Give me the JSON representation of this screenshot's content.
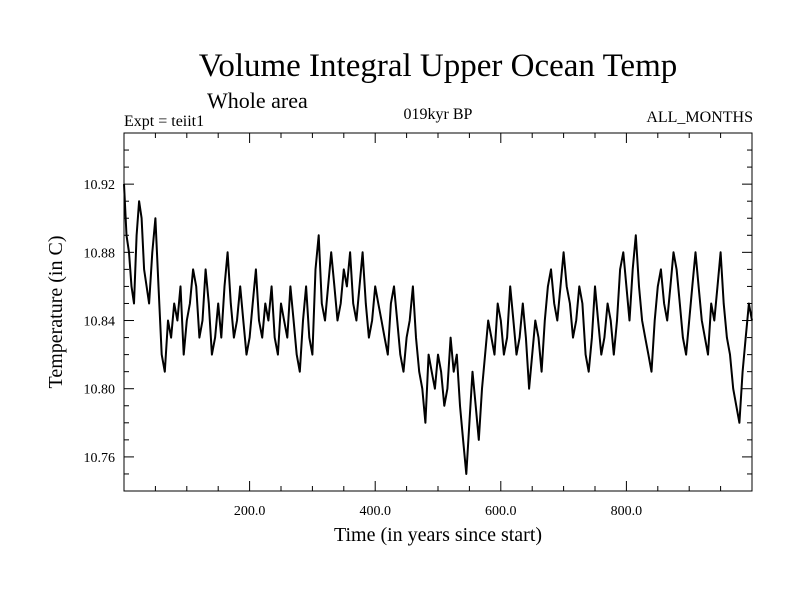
{
  "header": {
    "title": "Volume Integral Upper Ocean Temp",
    "subtitle": "Whole area",
    "left_label": "Expt = teiit1",
    "center_label": "019kyr BP",
    "right_label": "ALL_MONTHS"
  },
  "chart_data": {
    "type": "line",
    "title": "Volume Integral Upper Ocean Temp",
    "subtitle": "Whole area",
    "xlabel": "Time (in years since start)",
    "ylabel": "Temperature (in C)",
    "xlim": [
      0,
      1000
    ],
    "ylim": [
      10.74,
      10.95
    ],
    "xticks": [
      {
        "value": 200,
        "label": "200.0"
      },
      {
        "value": 400,
        "label": "400.0"
      },
      {
        "value": 600,
        "label": "600.0"
      },
      {
        "value": 800,
        "label": "800.0"
      }
    ],
    "yticks": [
      {
        "value": 10.76,
        "label": "10.76"
      },
      {
        "value": 10.8,
        "label": "10.80"
      },
      {
        "value": 10.84,
        "label": "10.84"
      },
      {
        "value": 10.88,
        "label": "10.88"
      },
      {
        "value": 10.92,
        "label": "10.92"
      }
    ],
    "grid": false,
    "line_color": "#000000",
    "series": [
      {
        "x": [
          0,
          4,
          8,
          12,
          16,
          20,
          24,
          28,
          32,
          36,
          40,
          45,
          50,
          55,
          60,
          65,
          70,
          75,
          80,
          85,
          90,
          95,
          100,
          105,
          110,
          115,
          120,
          125,
          130,
          135,
          140,
          145,
          150,
          155,
          160,
          165,
          170,
          175,
          180,
          185,
          190,
          195,
          200,
          205,
          210,
          215,
          220,
          225,
          230,
          235,
          240,
          245,
          250,
          255,
          260,
          265,
          270,
          275,
          280,
          285,
          290,
          295,
          300,
          305,
          310,
          315,
          320,
          325,
          330,
          335,
          340,
          345,
          350,
          355,
          360,
          365,
          370,
          375,
          380,
          385,
          390,
          395,
          400,
          405,
          410,
          415,
          420,
          425,
          430,
          435,
          440,
          445,
          450,
          455,
          460,
          465,
          470,
          475,
          480,
          485,
          490,
          495,
          500,
          505,
          510,
          515,
          520,
          525,
          530,
          535,
          540,
          545,
          550,
          555,
          560,
          565,
          570,
          575,
          580,
          585,
          590,
          595,
          600,
          605,
          610,
          615,
          620,
          625,
          630,
          635,
          640,
          645,
          650,
          655,
          660,
          665,
          670,
          675,
          680,
          685,
          690,
          695,
          700,
          705,
          710,
          715,
          720,
          725,
          730,
          735,
          740,
          745,
          750,
          755,
          760,
          765,
          770,
          775,
          780,
          785,
          790,
          795,
          800,
          805,
          810,
          815,
          820,
          825,
          830,
          835,
          840,
          845,
          850,
          855,
          860,
          865,
          870,
          875,
          880,
          885,
          890,
          895,
          900,
          905,
          910,
          915,
          920,
          925,
          930,
          935,
          940,
          945,
          950,
          955,
          960,
          965,
          970,
          975,
          980,
          985,
          990,
          995,
          1000
        ],
        "y": [
          10.92,
          10.89,
          10.88,
          10.86,
          10.85,
          10.89,
          10.91,
          10.9,
          10.87,
          10.86,
          10.85,
          10.88,
          10.9,
          10.86,
          10.82,
          10.81,
          10.84,
          10.83,
          10.85,
          10.84,
          10.86,
          10.82,
          10.84,
          10.85,
          10.87,
          10.86,
          10.83,
          10.84,
          10.87,
          10.85,
          10.82,
          10.83,
          10.85,
          10.83,
          10.86,
          10.88,
          10.85,
          10.83,
          10.84,
          10.86,
          10.84,
          10.82,
          10.83,
          10.85,
          10.87,
          10.84,
          10.83,
          10.85,
          10.84,
          10.86,
          10.83,
          10.82,
          10.85,
          10.84,
          10.83,
          10.86,
          10.84,
          10.82,
          10.81,
          10.84,
          10.86,
          10.83,
          10.82,
          10.87,
          10.89,
          10.85,
          10.84,
          10.86,
          10.88,
          10.86,
          10.84,
          10.85,
          10.87,
          10.86,
          10.88,
          10.85,
          10.84,
          10.86,
          10.88,
          10.85,
          10.83,
          10.84,
          10.86,
          10.85,
          10.84,
          10.83,
          10.82,
          10.85,
          10.86,
          10.84,
          10.82,
          10.81,
          10.83,
          10.84,
          10.86,
          10.83,
          10.81,
          10.8,
          10.78,
          10.82,
          10.81,
          10.8,
          10.82,
          10.81,
          10.79,
          10.8,
          10.83,
          10.81,
          10.82,
          10.79,
          10.77,
          10.75,
          10.78,
          10.81,
          10.79,
          10.77,
          10.8,
          10.82,
          10.84,
          10.83,
          10.82,
          10.85,
          10.84,
          10.82,
          10.83,
          10.86,
          10.84,
          10.82,
          10.83,
          10.85,
          10.83,
          10.8,
          10.82,
          10.84,
          10.83,
          10.81,
          10.84,
          10.86,
          10.87,
          10.85,
          10.84,
          10.86,
          10.88,
          10.86,
          10.85,
          10.83,
          10.84,
          10.86,
          10.85,
          10.82,
          10.81,
          10.83,
          10.86,
          10.84,
          10.82,
          10.83,
          10.85,
          10.84,
          10.82,
          10.84,
          10.87,
          10.88,
          10.86,
          10.84,
          10.87,
          10.89,
          10.86,
          10.84,
          10.83,
          10.82,
          10.81,
          10.84,
          10.86,
          10.87,
          10.85,
          10.84,
          10.86,
          10.88,
          10.87,
          10.85,
          10.83,
          10.82,
          10.84,
          10.86,
          10.88,
          10.86,
          10.84,
          10.83,
          10.82,
          10.85,
          10.84,
          10.86,
          10.88,
          10.85,
          10.83,
          10.82,
          10.8,
          10.79,
          10.78,
          10.81,
          10.83,
          10.85,
          10.84
        ]
      }
    ]
  },
  "axes": {
    "xlabel": "Time (in years since start)",
    "ylabel": "Temperature (in C)"
  }
}
